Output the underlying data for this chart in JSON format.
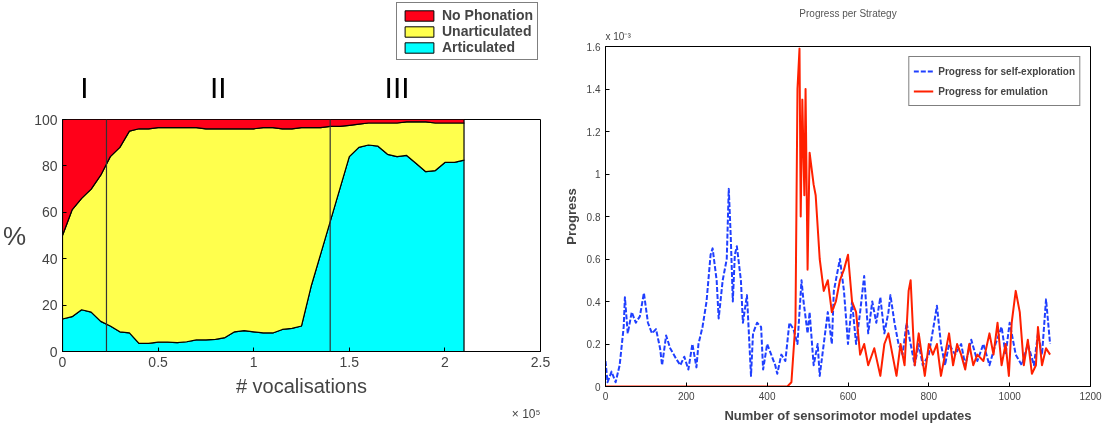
{
  "chart_data": [
    {
      "type": "area",
      "stacked": true,
      "xlabel": "# vocalisations",
      "ylabel": "%",
      "annotations": [
        "× 10⁵",
        "I",
        "II",
        "III"
      ],
      "legend": "top right",
      "grid": false,
      "x": [
        0,
        0.05,
        0.1,
        0.15,
        0.2,
        0.25,
        0.3,
        0.35,
        0.4,
        0.45,
        0.5,
        0.55,
        0.6,
        0.65,
        0.7,
        0.75,
        0.8,
        0.85,
        0.9,
        0.95,
        1.0,
        1.05,
        1.1,
        1.15,
        1.2,
        1.25,
        1.3,
        1.35,
        1.4,
        1.45,
        1.5,
        1.55,
        1.6,
        1.65,
        1.7,
        1.75,
        1.8,
        1.85,
        1.9,
        1.95,
        2.0,
        2.05,
        2.1
      ],
      "xlim": [
        0,
        2.5
      ],
      "xticks": [
        0,
        0.5,
        1,
        1.5,
        2,
        2.5
      ],
      "ylim": [
        0,
        100
      ],
      "yticks": [
        0,
        20,
        40,
        60,
        80,
        100
      ],
      "series": [
        {
          "name": "Articulated",
          "color": "#00ffff",
          "values": [
            14,
            15,
            18,
            17,
            13,
            11,
            8.5,
            8,
            3.5,
            3.5,
            4,
            4,
            3.8,
            4.2,
            5,
            5,
            5.2,
            6,
            8.5,
            9,
            8.5,
            8,
            8,
            9.5,
            10,
            11,
            28,
            42,
            56,
            70,
            84,
            88,
            89,
            88.5,
            85,
            84,
            84.5,
            81,
            77.5,
            78,
            81.5,
            81.5,
            82.5
          ]
        },
        {
          "name": "Unarticulated",
          "color": "#ffff4d",
          "values": [
            36,
            46,
            48,
            53,
            63,
            73,
            79.5,
            87,
            92.5,
            92.5,
            92.5,
            92.5,
            92.7,
            92.3,
            91.5,
            91,
            90.8,
            90,
            87.5,
            87,
            87.5,
            88.5,
            88.5,
            86.5,
            86,
            85.5,
            68.5,
            54.5,
            41,
            27,
            13.5,
            10,
            9.5,
            10,
            13.5,
            14.5,
            14.5,
            18,
            21.5,
            20.5,
            17,
            17,
            16
          ]
        },
        {
          "name": "No Phonation",
          "color": "#ff0019",
          "values": [
            50,
            39,
            34,
            30,
            24,
            16,
            12,
            5,
            4,
            4,
            3.5,
            3.5,
            3.5,
            3.5,
            3.5,
            4,
            4,
            4,
            4,
            4,
            4,
            3.5,
            3.5,
            4,
            4,
            3.5,
            3.5,
            3.5,
            3,
            3,
            2.5,
            2,
            1.5,
            1.5,
            1.5,
            1.5,
            1,
            1,
            1,
            1.5,
            1.5,
            1.5,
            1.5
          ]
        }
      ],
      "ref_lines": [
        {
          "axis": "x",
          "value": 0.23,
          "color": "#333333"
        },
        {
          "axis": "x",
          "value": 1.4,
          "color": "#333333"
        }
      ]
    },
    {
      "type": "line",
      "title": "Progress per Strategy",
      "xlabel": "Number of sensorimotor model updates",
      "ylabel": "Progress",
      "annotations": [
        "x 10⁻³"
      ],
      "legend": "top right",
      "grid": false,
      "xlim": [
        0,
        1200
      ],
      "xticks": [
        0,
        200,
        400,
        600,
        800,
        1000,
        1200
      ],
      "ylim": [
        0,
        1.6
      ],
      "yticks": [
        0,
        0.2,
        0.4,
        0.6,
        0.8,
        1,
        1.2,
        1.4,
        1.6
      ],
      "series": [
        {
          "name": "Progress for self-exploration",
          "color": "#1f3fff",
          "line_style": "dashed",
          "x": [
            0,
            5,
            15,
            25,
            35,
            45,
            48,
            55,
            65,
            75,
            85,
            95,
            105,
            115,
            125,
            135,
            140,
            150,
            160,
            175,
            185,
            195,
            205,
            215,
            225,
            230,
            240,
            250,
            260,
            265,
            275,
            280,
            290,
            300,
            305,
            310,
            315,
            320,
            325,
            335,
            340,
            350,
            360,
            365,
            375,
            385,
            390,
            400,
            410,
            420,
            425,
            435,
            445,
            455,
            465,
            475,
            485,
            490,
            500,
            505,
            515,
            525,
            530,
            540,
            550,
            560,
            565,
            575,
            580,
            590,
            600,
            610,
            620,
            630,
            640,
            650,
            660,
            670,
            680,
            690,
            700,
            705,
            715,
            725,
            735,
            745,
            755,
            765,
            775,
            785,
            800,
            815,
            820,
            830,
            840,
            850,
            865,
            880,
            890,
            905,
            920,
            935,
            950,
            965,
            980,
            990,
            1000,
            1015,
            1030,
            1045,
            1060,
            1070,
            1080,
            1090,
            1100
          ],
          "values": [
            0.12,
            0.02,
            0.07,
            0.02,
            0.1,
            0.28,
            0.42,
            0.25,
            0.35,
            0.3,
            0.33,
            0.44,
            0.3,
            0.25,
            0.27,
            0.18,
            0.1,
            0.24,
            0.18,
            0.13,
            0.1,
            0.14,
            0.08,
            0.2,
            0.09,
            0.2,
            0.28,
            0.4,
            0.62,
            0.65,
            0.5,
            0.32,
            0.5,
            0.6,
            0.93,
            0.7,
            0.4,
            0.62,
            0.66,
            0.5,
            0.3,
            0.43,
            0.05,
            0.25,
            0.3,
            0.28,
            0.08,
            0.2,
            0.15,
            0.1,
            0.06,
            0.15,
            0.12,
            0.3,
            0.27,
            0.2,
            0.5,
            0.4,
            0.25,
            0.35,
            0.1,
            0.2,
            0.05,
            0.2,
            0.35,
            0.2,
            0.45,
            0.55,
            0.6,
            0.45,
            0.2,
            0.4,
            0.2,
            0.35,
            0.52,
            0.25,
            0.4,
            0.3,
            0.42,
            0.25,
            0.35,
            0.43,
            0.3,
            0.2,
            0.15,
            0.3,
            0.2,
            0.1,
            0.2,
            0.1,
            0.15,
            0.32,
            0.38,
            0.2,
            0.1,
            0.2,
            0.15,
            0.2,
            0.1,
            0.22,
            0.12,
            0.2,
            0.1,
            0.2,
            0.28,
            0.15,
            0.3,
            0.15,
            0.1,
            0.2,
            0.1,
            0.25,
            0.15,
            0.41,
            0.2
          ]
        },
        {
          "name": "Progress for emulation",
          "color": "#ff2000",
          "line_style": "solid",
          "x": [
            0,
            450,
            460,
            470,
            475,
            480,
            483,
            487,
            492,
            495,
            500,
            505,
            515,
            520,
            530,
            540,
            550,
            560,
            570,
            580,
            590,
            600,
            610,
            620,
            630,
            640,
            650,
            665,
            680,
            690,
            700,
            710,
            720,
            730,
            740,
            750,
            755,
            765,
            775,
            790,
            800,
            810,
            820,
            830,
            840,
            850,
            860,
            870,
            880,
            890,
            900,
            910,
            920,
            935,
            950,
            960,
            970,
            980,
            990,
            998,
            1005,
            1015,
            1025,
            1035,
            1045,
            1055,
            1065,
            1070,
            1080,
            1090,
            1100
          ],
          "values": [
            0,
            0,
            0.02,
            0.3,
            1.4,
            1.59,
            0.8,
            1.35,
            0.9,
            1.4,
            0.55,
            1.1,
            0.95,
            0.9,
            0.6,
            0.45,
            0.5,
            0.35,
            0.4,
            0.5,
            0.55,
            0.62,
            0.4,
            0.35,
            0.15,
            0.2,
            0.1,
            0.18,
            0.05,
            0.2,
            0.25,
            0.15,
            0.05,
            0.2,
            0.1,
            0.45,
            0.5,
            0.1,
            0.25,
            0.05,
            0.2,
            0.15,
            0.2,
            0.05,
            0.15,
            0.25,
            0.1,
            0.2,
            0.15,
            0.08,
            0.2,
            0.1,
            0.15,
            0.12,
            0.25,
            0.15,
            0.3,
            0.1,
            0.2,
            0.05,
            0.3,
            0.45,
            0.35,
            0.1,
            0.22,
            0.06,
            0.1,
            0.28,
            0.1,
            0.18,
            0.15
          ]
        }
      ]
    }
  ]
}
